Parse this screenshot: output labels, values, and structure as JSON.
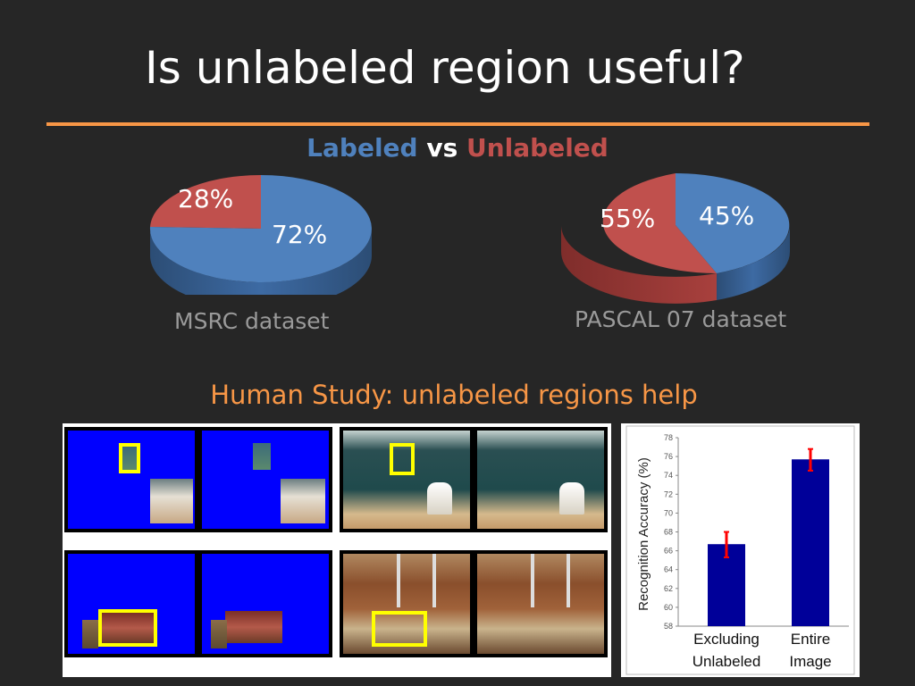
{
  "slide": {
    "title": "Is unlabeled region useful?",
    "heading": {
      "labeled": "Labeled",
      "vs": " vs ",
      "unlabeled": "Unlabeled"
    },
    "subtitle": "Human Study: unlabeled regions help"
  },
  "colors": {
    "labeled": "#4f81bd",
    "unlabeled": "#c0504d",
    "accent": "#f79646",
    "bar": "#000099",
    "error_bar": "#ff0000",
    "blue_mask": "#0000ff",
    "highlight": "#ffff00"
  },
  "pies": [
    {
      "caption": "MSRC dataset",
      "labeled_pct": "72%",
      "unlabeled_pct": "28%",
      "labeled": 72,
      "unlabeled": 28
    },
    {
      "caption": "PASCAL 07 dataset",
      "labeled_pct": "45%",
      "unlabeled_pct": "55%",
      "labeled": 45,
      "unlabeled": 55
    }
  ],
  "chart_data": {
    "type": "bar",
    "ylabel": "Recognition Accuracy (%)",
    "categories": [
      "Excluding Unlabeled",
      "Entire Image"
    ],
    "category_lines": [
      [
        "Excluding",
        "Unlabeled"
      ],
      [
        "Entire",
        "Image"
      ]
    ],
    "values": [
      66.7,
      75.7
    ],
    "error_low": [
      65.3,
      74.5
    ],
    "error_high": [
      68.0,
      76.8
    ],
    "ylim": [
      58,
      78
    ],
    "yticks": [
      "58",
      "60",
      "62",
      "64",
      "66",
      "68",
      "70",
      "72",
      "74",
      "76",
      "78"
    ],
    "grid": false,
    "legend": "none"
  }
}
